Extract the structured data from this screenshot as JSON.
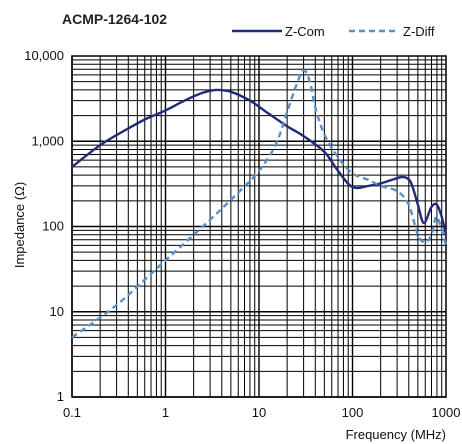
{
  "chart_data": {
    "type": "line",
    "title": "ACMP-1264-102",
    "xlabel": "Frequency (MHz)",
    "ylabel": "Impedance (Ω)",
    "x_scale": "log",
    "y_scale": "log",
    "xlim": [
      0.1,
      1000
    ],
    "ylim": [
      1,
      10000
    ],
    "x_ticks": [
      0.1,
      1,
      10,
      100,
      1000
    ],
    "x_tick_labels": [
      "0.1",
      "1",
      "10",
      "100",
      "1000"
    ],
    "y_ticks": [
      1,
      10,
      100,
      1000,
      10000
    ],
    "y_tick_labels": [
      "1",
      "10",
      "100",
      "1,000",
      "10,000"
    ],
    "grid": true,
    "legend_position": "top-right",
    "series": [
      {
        "name": "Z-Com",
        "style": "solid",
        "color": "#1f2a7a",
        "x": [
          0.1,
          0.2,
          0.35,
          0.6,
          1,
          1.6,
          2.5,
          3.5,
          5,
          8,
          12,
          20,
          30,
          50,
          70,
          100,
          150,
          200,
          280,
          350,
          420,
          500,
          580,
          700,
          800,
          900,
          1000
        ],
        "y": [
          500,
          900,
          1300,
          1800,
          2300,
          3000,
          3700,
          4000,
          3800,
          3000,
          2200,
          1500,
          1150,
          750,
          450,
          290,
          300,
          320,
          360,
          380,
          330,
          180,
          110,
          170,
          180,
          130,
          80
        ]
      },
      {
        "name": "Z-Diff",
        "style": "dashed",
        "color": "#5b8fc9",
        "x": [
          0.1,
          0.3,
          1,
          3,
          6,
          10,
          15,
          20,
          25,
          30,
          35,
          40,
          50,
          70,
          100,
          150,
          200,
          300,
          400,
          500,
          600,
          700,
          800,
          1000
        ],
        "y": [
          5,
          12,
          40,
          120,
          250,
          450,
          900,
          2200,
          4500,
          6800,
          5000,
          2500,
          1200,
          650,
          420,
          350,
          300,
          260,
          180,
          80,
          65,
          80,
          130,
          60
        ]
      }
    ]
  }
}
